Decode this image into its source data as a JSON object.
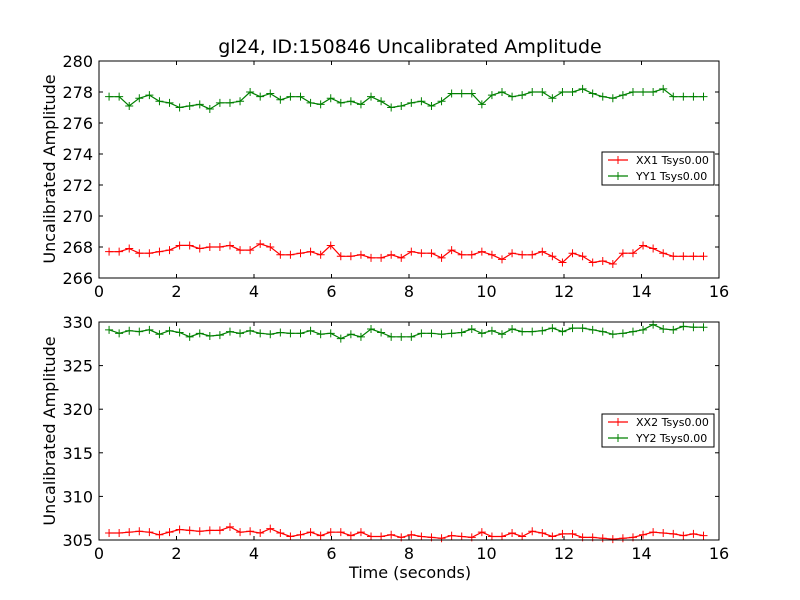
{
  "chart_data": {
    "title": "gl24, ID:150846 Uncalibrated Amplitude",
    "panels": [
      {
        "type": "line",
        "ylabel": "Uncalibrated Amplitude",
        "xlabel": "",
        "xlim": [
          0,
          16
        ],
        "ylim": [
          266,
          280
        ],
        "xticks": [
          "0",
          "2",
          "4",
          "6",
          "8",
          "10",
          "12",
          "14",
          "16"
        ],
        "yticks": [
          "266",
          "268",
          "270",
          "272",
          "274",
          "276",
          "278",
          "280"
        ],
        "legend_position": "center-right",
        "series": [
          {
            "name": "XX1 Tsys0.00",
            "color": "#ff0000",
            "x": [
              0.26,
              0.52,
              0.78,
              1.04,
              1.3,
              1.56,
              1.82,
              2.08,
              2.34,
              2.6,
              2.86,
              3.12,
              3.38,
              3.64,
              3.9,
              4.16,
              4.42,
              4.68,
              4.94,
              5.2,
              5.46,
              5.72,
              5.98,
              6.24,
              6.5,
              6.76,
              7.02,
              7.28,
              7.54,
              7.8,
              8.06,
              8.32,
              8.58,
              8.84,
              9.1,
              9.36,
              9.62,
              9.88,
              10.14,
              10.4,
              10.66,
              10.92,
              11.18,
              11.44,
              11.7,
              11.96,
              12.22,
              12.48,
              12.74,
              13.0,
              13.26,
              13.52,
              13.78,
              14.04,
              14.3,
              14.56,
              14.82,
              15.08,
              15.34,
              15.6
            ],
            "values": [
              267.7,
              267.7,
              267.9,
              267.6,
              267.6,
              267.7,
              267.8,
              268.1,
              268.1,
              267.9,
              268.0,
              268.0,
              268.1,
              267.8,
              267.8,
              268.2,
              268.0,
              267.5,
              267.5,
              267.6,
              267.7,
              267.5,
              268.1,
              267.4,
              267.4,
              267.5,
              267.3,
              267.3,
              267.5,
              267.3,
              267.7,
              267.6,
              267.6,
              267.3,
              267.8,
              267.5,
              267.5,
              267.7,
              267.5,
              267.2,
              267.6,
              267.5,
              267.5,
              267.7,
              267.4,
              267.0,
              267.6,
              267.4,
              267.0,
              267.1,
              266.9,
              267.6,
              267.6,
              268.1,
              267.9,
              267.6,
              267.4,
              267.4,
              267.4,
              267.4
            ]
          },
          {
            "name": "YY1 Tsys0.00",
            "color": "#008000",
            "x": [
              0.26,
              0.52,
              0.78,
              1.04,
              1.3,
              1.56,
              1.82,
              2.08,
              2.34,
              2.6,
              2.86,
              3.12,
              3.38,
              3.64,
              3.9,
              4.16,
              4.42,
              4.68,
              4.94,
              5.2,
              5.46,
              5.72,
              5.98,
              6.24,
              6.5,
              6.76,
              7.02,
              7.28,
              7.54,
              7.8,
              8.06,
              8.32,
              8.58,
              8.84,
              9.1,
              9.36,
              9.62,
              9.88,
              10.14,
              10.4,
              10.66,
              10.92,
              11.18,
              11.44,
              11.7,
              11.96,
              12.22,
              12.48,
              12.74,
              13.0,
              13.26,
              13.52,
              13.78,
              14.04,
              14.3,
              14.56,
              14.82,
              15.08,
              15.34,
              15.6
            ],
            "values": [
              277.7,
              277.7,
              277.1,
              277.6,
              277.8,
              277.4,
              277.3,
              277.0,
              277.1,
              277.2,
              276.9,
              277.3,
              277.3,
              277.4,
              278.0,
              277.7,
              277.9,
              277.5,
              277.7,
              277.7,
              277.3,
              277.2,
              277.6,
              277.3,
              277.4,
              277.2,
              277.7,
              277.4,
              277.0,
              277.1,
              277.3,
              277.4,
              277.1,
              277.4,
              277.9,
              277.9,
              277.9,
              277.2,
              277.8,
              278.0,
              277.7,
              277.8,
              278.0,
              278.0,
              277.6,
              278.0,
              278.0,
              278.2,
              277.9,
              277.7,
              277.6,
              277.8,
              278.0,
              278.0,
              278.0,
              278.2,
              277.7,
              277.7,
              277.7,
              277.7
            ]
          }
        ]
      },
      {
        "type": "line",
        "ylabel": "Uncalibrated Amplitude",
        "xlabel": "Time (seconds)",
        "xlim": [
          0,
          16
        ],
        "ylim": [
          305,
          330
        ],
        "xticks": [
          "0",
          "2",
          "4",
          "6",
          "8",
          "10",
          "12",
          "14",
          "16"
        ],
        "yticks": [
          "305",
          "310",
          "315",
          "320",
          "325",
          "330"
        ],
        "legend_position": "center-right",
        "series": [
          {
            "name": "XX2 Tsys0.00",
            "color": "#ff0000",
            "x": [
              0.26,
              0.52,
              0.78,
              1.04,
              1.3,
              1.56,
              1.82,
              2.08,
              2.34,
              2.6,
              2.86,
              3.12,
              3.38,
              3.64,
              3.9,
              4.16,
              4.42,
              4.68,
              4.94,
              5.2,
              5.46,
              5.72,
              5.98,
              6.24,
              6.5,
              6.76,
              7.02,
              7.28,
              7.54,
              7.8,
              8.06,
              8.32,
              8.58,
              8.84,
              9.1,
              9.36,
              9.62,
              9.88,
              10.14,
              10.4,
              10.66,
              10.92,
              11.18,
              11.44,
              11.7,
              11.96,
              12.22,
              12.48,
              12.74,
              13.0,
              13.26,
              13.52,
              13.78,
              14.04,
              14.3,
              14.56,
              14.82,
              15.08,
              15.34,
              15.6
            ],
            "values": [
              305.8,
              305.8,
              305.9,
              306.0,
              305.9,
              305.6,
              305.9,
              306.2,
              306.1,
              306.0,
              306.1,
              306.1,
              306.5,
              305.9,
              306.0,
              305.8,
              306.3,
              305.8,
              305.4,
              305.6,
              305.9,
              305.5,
              305.9,
              305.9,
              305.5,
              305.9,
              305.4,
              305.4,
              305.6,
              305.3,
              305.6,
              305.4,
              305.3,
              305.2,
              305.5,
              305.4,
              305.3,
              305.9,
              305.4,
              305.4,
              305.8,
              305.4,
              306.0,
              305.8,
              305.4,
              305.7,
              305.7,
              305.3,
              305.3,
              305.2,
              305.1,
              305.2,
              305.3,
              305.6,
              305.9,
              305.8,
              305.7,
              305.5,
              305.7,
              305.5
            ]
          },
          {
            "name": "YY2 Tsys0.00",
            "color": "#008000",
            "x": [
              0.26,
              0.52,
              0.78,
              1.04,
              1.3,
              1.56,
              1.82,
              2.08,
              2.34,
              2.6,
              2.86,
              3.12,
              3.38,
              3.64,
              3.9,
              4.16,
              4.42,
              4.68,
              4.94,
              5.2,
              5.46,
              5.72,
              5.98,
              6.24,
              6.5,
              6.76,
              7.02,
              7.28,
              7.54,
              7.8,
              8.06,
              8.32,
              8.58,
              8.84,
              9.1,
              9.36,
              9.62,
              9.88,
              10.14,
              10.4,
              10.66,
              10.92,
              11.18,
              11.44,
              11.7,
              11.96,
              12.22,
              12.48,
              12.74,
              13.0,
              13.26,
              13.52,
              13.78,
              14.04,
              14.3,
              14.56,
              14.82,
              15.08,
              15.34,
              15.6
            ],
            "values": [
              329.1,
              328.7,
              329.0,
              328.9,
              329.1,
              328.6,
              329.0,
              328.8,
              328.3,
              328.7,
              328.4,
              328.5,
              328.9,
              328.7,
              329.0,
              328.7,
              328.6,
              328.8,
              328.7,
              328.7,
              329.0,
              328.6,
              328.7,
              328.1,
              328.6,
              328.3,
              329.2,
              328.8,
              328.3,
              328.3,
              328.3,
              328.7,
              328.7,
              328.6,
              328.7,
              328.8,
              329.2,
              328.7,
              329.0,
              328.6,
              329.2,
              328.9,
              328.9,
              329.0,
              329.3,
              328.9,
              329.3,
              329.3,
              329.1,
              328.9,
              328.6,
              328.7,
              328.9,
              329.1,
              329.7,
              329.2,
              329.1,
              329.5,
              329.4,
              329.4
            ]
          }
        ]
      }
    ]
  }
}
